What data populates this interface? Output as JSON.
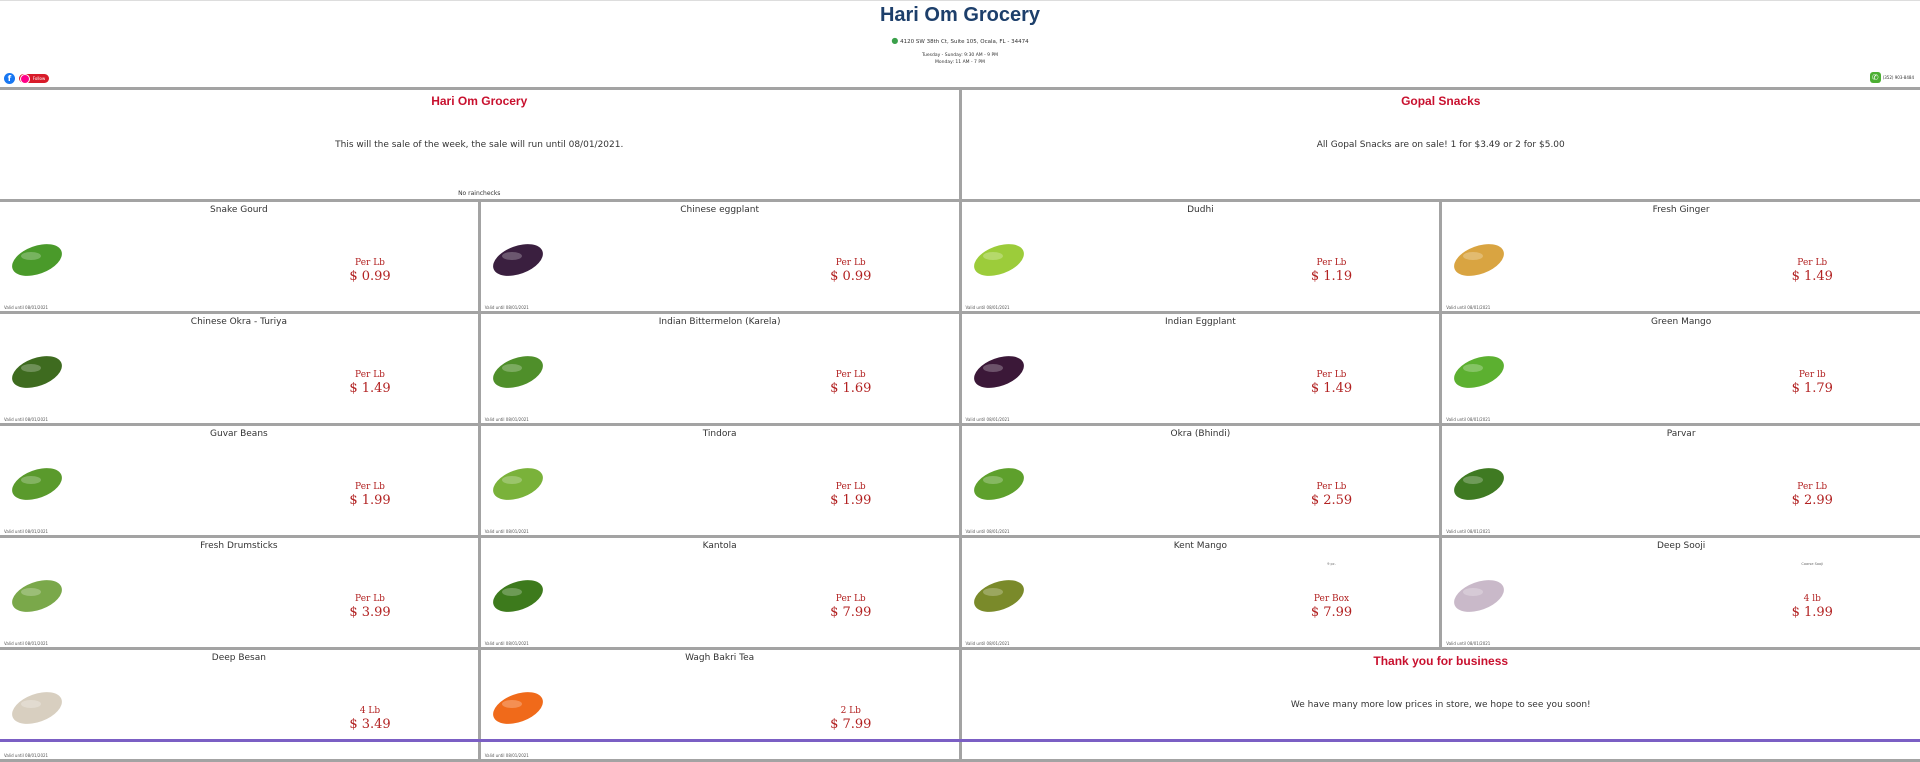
{
  "header": {
    "title": "Hari Om Grocery",
    "address": "4120 SW 38th Ct, Suite 105, Ocala, FL - 34474",
    "hours": [
      "Tuesday - Sunday: 9:30 AM - 9 PM",
      "Monday: 11 AM - 7 PM"
    ],
    "phone": "(352) 903-8484",
    "instagram_label": "Follow"
  },
  "banners": [
    {
      "title": "Hari Om Grocery",
      "text": "This will the sale of the week, the sale will run until 08/01/2021.",
      "footer": "No rainchecks"
    },
    {
      "title": "Gopal Snacks",
      "text": "All Gopal Snacks are on sale! 1 for $3.49 or 2 for $5.00",
      "footer": ""
    }
  ],
  "products": [
    {
      "name": "Snake Gourd",
      "unit": "Per Lb",
      "price": "$ 0.99",
      "valid": "Valid until 08/01/2021",
      "color": "#4a9a2a"
    },
    {
      "name": "Chinese eggplant",
      "unit": "Per Lb",
      "price": "$ 0.99",
      "valid": "Valid until 08/01/2021",
      "color": "#3a1f3f"
    },
    {
      "name": "Dudhi",
      "unit": "Per Lb",
      "price": "$ 1.19",
      "valid": "Valid until 08/01/2021",
      "color": "#9ccc3a"
    },
    {
      "name": "Fresh Ginger",
      "unit": "Per Lb",
      "price": "$ 1.49",
      "valid": "Valid until 08/01/2021",
      "color": "#d9a441"
    },
    {
      "name": "Chinese Okra - Turiya",
      "unit": "Per Lb",
      "price": "$ 1.49",
      "valid": "Valid until 08/01/2021",
      "color": "#3e6b1f"
    },
    {
      "name": "Indian Bittermelon (Karela)",
      "unit": "Per Lb",
      "price": "$ 1.69",
      "valid": "Valid until 08/01/2021",
      "color": "#4f8f2a"
    },
    {
      "name": "Indian Eggplant",
      "unit": "Per Lb",
      "price": "$ 1.49",
      "valid": "Valid until 08/01/2021",
      "color": "#3b1838"
    },
    {
      "name": "Green Mango",
      "unit": "Per lb",
      "price": "$ 1.79",
      "valid": "Valid until 08/01/2021",
      "color": "#5cb030"
    },
    {
      "name": "Guvar Beans",
      "unit": "Per Lb",
      "price": "$ 1.99",
      "valid": "Valid until 08/01/2021",
      "color": "#5a9a2c"
    },
    {
      "name": "Tindora",
      "unit": "Per Lb",
      "price": "$ 1.99",
      "valid": "Valid until 08/01/2021",
      "color": "#7ab23a"
    },
    {
      "name": "Okra (Bhindi)",
      "unit": "Per Lb",
      "price": "$ 2.59",
      "valid": "Valid until 08/01/2021",
      "color": "#5ea02c"
    },
    {
      "name": "Parvar",
      "unit": "Per Lb",
      "price": "$ 2.99",
      "valid": "Valid until 08/01/2021",
      "color": "#3f7a22"
    },
    {
      "name": "Fresh Drumsticks",
      "unit": "Per Lb",
      "price": "$ 3.99",
      "valid": "Valid until 08/01/2021",
      "color": "#7aa84a"
    },
    {
      "name": "Kantola",
      "unit": "Per Lb",
      "price": "$ 7.99",
      "valid": "Valid until 08/01/2021",
      "color": "#3d7a1c"
    },
    {
      "name": "Kent Mango",
      "unit": "Per Box",
      "price": "$ 7.99",
      "valid": "Valid until 08/01/2021",
      "note": "9 pc.",
      "color": "#7a8a2a"
    },
    {
      "name": "Deep Sooji",
      "unit": "4 lb",
      "price": "$ 1.99",
      "valid": "Valid until 08/01/2021",
      "note": "Coarse Sooji",
      "color": "#c9b9c9"
    },
    {
      "name": "Deep Besan",
      "unit": "4 Lb",
      "price": "$ 3.49",
      "valid": "Valid until 08/01/2021",
      "color": "#d8cfc0"
    },
    {
      "name": "Wagh Bakri Tea",
      "unit": "2 Lb",
      "price": "$ 7.99",
      "valid": "Valid until 08/01/2021",
      "color": "#f06a1a"
    }
  ],
  "closing": {
    "title": "Thank you for business",
    "text": "We have many more low prices in store, we hope to see you soon!"
  }
}
